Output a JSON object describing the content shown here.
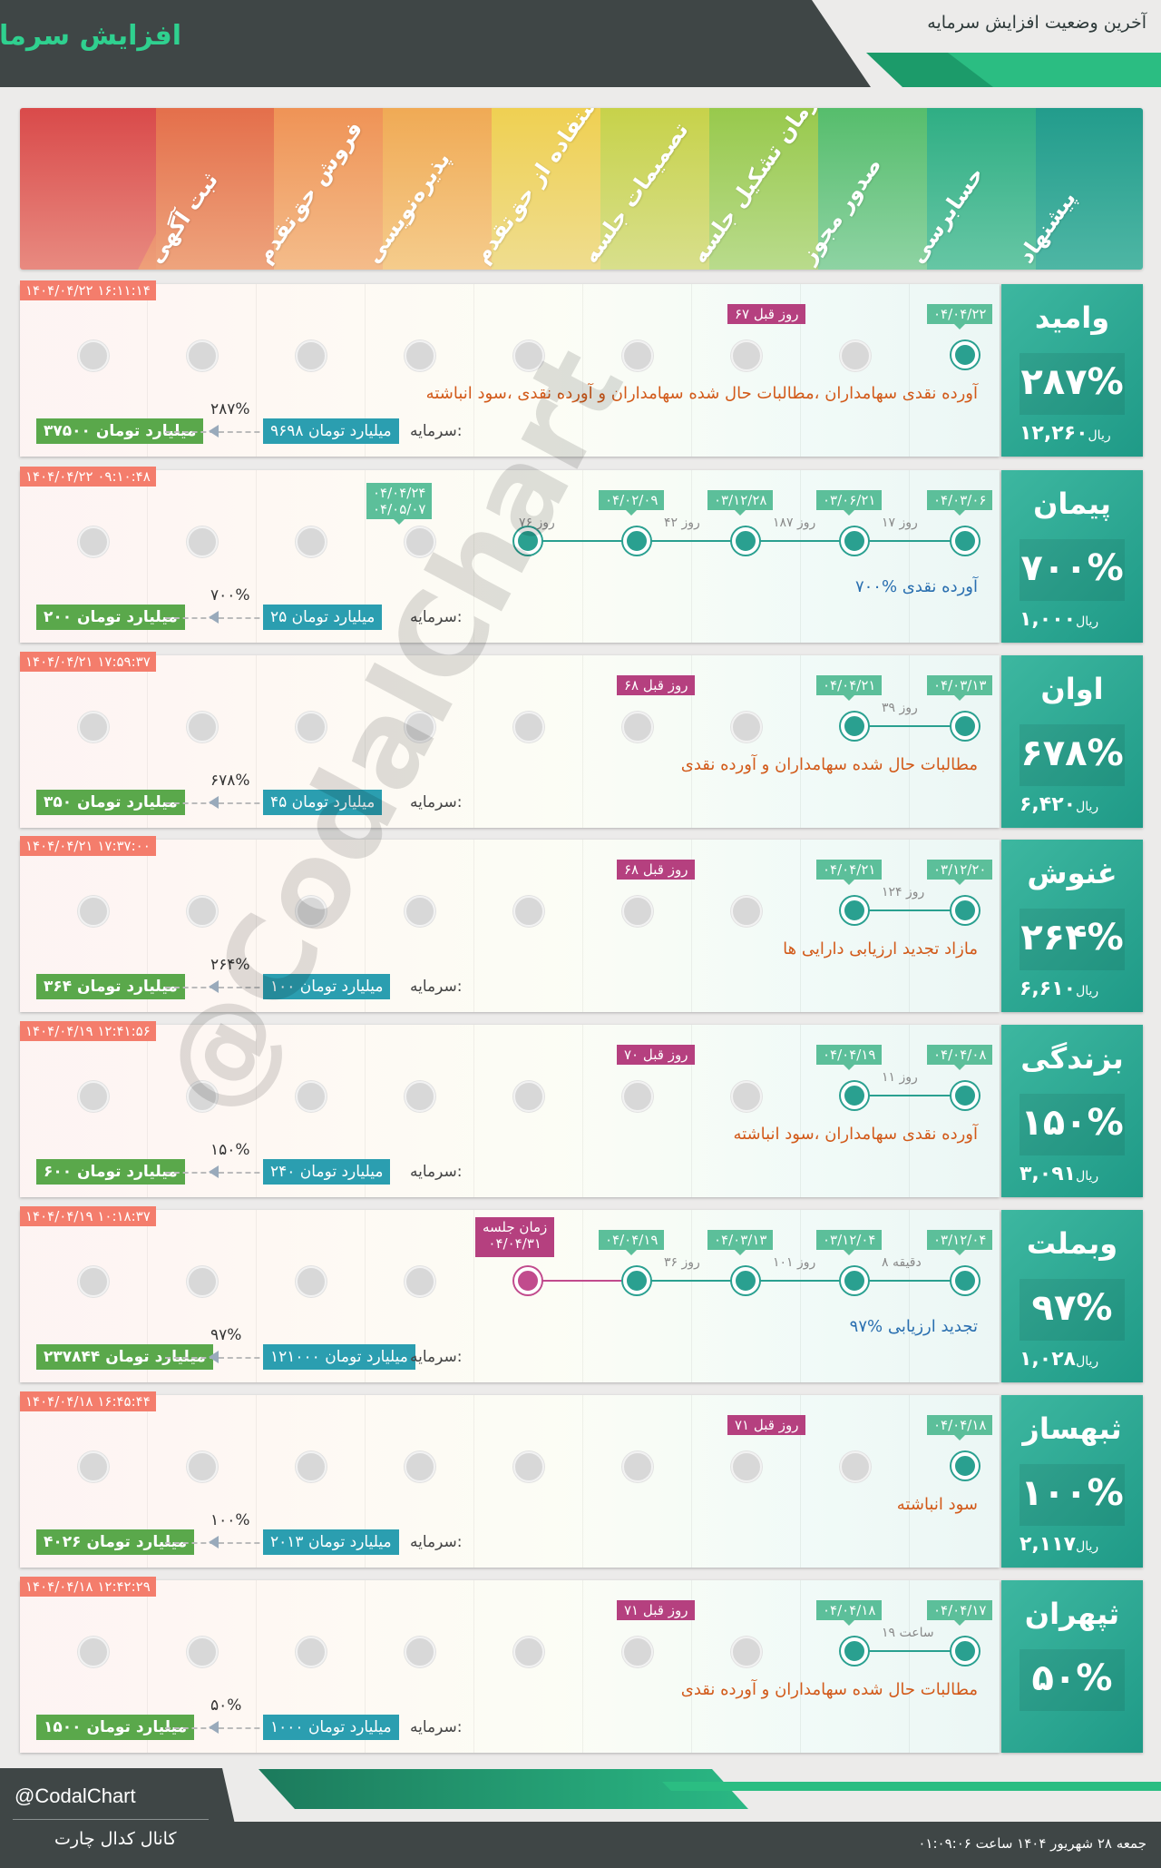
{
  "header": {
    "title": "افزایش سرمایه",
    "subtitle": "آخرین وضعیت افزایش سرمایه",
    "accent": "#2fd08f",
    "dark": "#3f4646"
  },
  "stages": [
    "پیشنهاد",
    "حسابرسی",
    "صدور مجوز",
    "زمان تشکیل جلسه",
    "تصمیمات جلسه",
    "استفاده از حق‌تقدم",
    "پذیره‌نویسی",
    "فروش حق‌تقدم",
    "ثبت آگهی"
  ],
  "cap_label": "سرمایه:",
  "cards": [
    {
      "name": "وامید",
      "pct": "۲۸۷%",
      "price": "۱۲,۲۶۰",
      "currency": "ریال",
      "timestamp": "۱۴۰۴/۰۴/۲۲ ۱۶:۱۱:۱۴",
      "dates": [
        "۰۴/۰۴/۲۲"
      ],
      "ago": "۶۷ روز قبل",
      "gaps": [],
      "desc": "آورده نقدی سهامداران ،مطالبات حال شده سهامداران و آورده نقدی ،سود انباشته",
      "capital": "۹۶۹۸ میلیارد تومان",
      "increase": "۲۸۷%",
      "new_capital": "۳۷۵۰۰ میلیارد تومان"
    },
    {
      "name": "پیمان",
      "pct": "۷۰۰%",
      "price": "۱,۰۰۰",
      "currency": "ریال",
      "timestamp": "۱۴۰۴/۰۴/۲۲ ۰۹:۱۰:۴۸",
      "dates": [
        "۰۴/۰۳/۰۶",
        "۰۳/۰۶/۲۱",
        "۰۳/۱۲/۲۸",
        "۰۴/۰۲/۰۹",
        "۰۴/۰۴/۲۴",
        "۰۴/۰۵/۰۷"
      ],
      "ago": "",
      "gaps": [
        "۱۷ روز",
        "۱۸۷ روز",
        "۴۲ روز",
        "۷۶ روز"
      ],
      "desc": "۷۰۰% آورده نقدی",
      "capital": "۲۵ میلیارد تومان",
      "increase": "۷۰۰%",
      "new_capital": "۲۰۰ میلیارد تومان"
    },
    {
      "name": "اوان",
      "pct": "۶۷۸%",
      "price": "۶,۴۲۰",
      "currency": "ریال",
      "timestamp": "۱۴۰۴/۰۴/۲۱ ۱۷:۵۹:۳۷",
      "dates": [
        "۰۴/۰۳/۱۳",
        "۰۴/۰۴/۲۱"
      ],
      "ago": "۶۸ روز قبل",
      "gaps": [
        "۳۹ روز"
      ],
      "desc": "مطالبات حال شده سهامداران و آورده نقدی",
      "capital": "۴۵ میلیارد تومان",
      "increase": "۶۷۸%",
      "new_capital": "۳۵۰ میلیارد تومان"
    },
    {
      "name": "غنوش",
      "pct": "۲۶۴%",
      "price": "۶,۶۱۰",
      "currency": "ریال",
      "timestamp": "۱۴۰۴/۰۴/۲۱ ۱۷:۳۷:۰۰",
      "dates": [
        "۰۳/۱۲/۲۰",
        "۰۴/۰۴/۲۱"
      ],
      "ago": "۶۸ روز قبل",
      "gaps": [
        "۱۲۴ روز"
      ],
      "desc": "مازاد تجدید ارزیابی دارایی ها",
      "capital": "۱۰۰ میلیارد تومان",
      "increase": "۲۶۴%",
      "new_capital": "۳۶۴ میلیارد تومان"
    },
    {
      "name": "بزندگی",
      "pct": "۱۵۰%",
      "price": "۳,۰۹۱",
      "currency": "ریال",
      "timestamp": "۱۴۰۴/۰۴/۱۹ ۱۲:۴۱:۵۶",
      "dates": [
        "۰۴/۰۴/۰۸",
        "۰۴/۰۴/۱۹"
      ],
      "ago": "۷۰ روز قبل",
      "gaps": [
        "۱۱ روز"
      ],
      "desc": "آورده نقدی سهامداران ،سود انباشته",
      "capital": "۲۴۰ میلیارد تومان",
      "increase": "۱۵۰%",
      "new_capital": "۶۰۰ میلیارد تومان"
    },
    {
      "name": "وبملت",
      "pct": "۹۷%",
      "price": "۱,۰۲۸",
      "currency": "ریال",
      "timestamp": "۱۴۰۴/۰۴/۱۹ ۱۰:۱۸:۳۷",
      "dates": [
        "۰۳/۱۲/۰۴",
        "۰۳/۱۲/۰۴",
        "۰۴/۰۳/۱۳",
        "۰۴/۰۴/۱۹"
      ],
      "ago": "",
      "gaps": [
        "۸ دقیقه",
        "۱۰۱ روز",
        "۳۶ روز"
      ],
      "meeting_label": "زمان جلسه",
      "meeting_date": "۰۴/۰۴/۳۱",
      "desc": "۹۷% تجدید ارزیابی",
      "capital": "۱۲۱۰۰۰ میلیارد تومان",
      "increase": "۹۷%",
      "new_capital": "۲۳۷۸۴۴ میلیارد تومان"
    },
    {
      "name": "ثبهساز",
      "pct": "۱۰۰%",
      "price": "۲,۱۱۷",
      "currency": "ریال",
      "timestamp": "۱۴۰۴/۰۴/۱۸ ۱۶:۴۵:۴۴",
      "dates": [
        "۰۴/۰۴/۱۸"
      ],
      "ago": "۷۱ روز قبل",
      "gaps": [],
      "desc": "سود انباشته",
      "capital": "۲۰۱۳ میلیارد تومان",
      "increase": "۱۰۰%",
      "new_capital": "۴۰۲۶ میلیارد تومان"
    },
    {
      "name": "ثپهران",
      "pct": "۵۰%",
      "price": "",
      "currency": "",
      "timestamp": "۱۴۰۴/۰۴/۱۸ ۱۲:۴۲:۲۹",
      "dates": [
        "۰۴/۰۴/۱۷",
        "۰۴/۰۴/۱۸"
      ],
      "ago": "۷۱ روز قبل",
      "gaps": [
        "۱۹ ساعت"
      ],
      "desc": "مطالبات حال شده سهامداران و آورده نقدی",
      "capital": "۱۰۰۰ میلیارد تومان",
      "increase": "۵۰%",
      "new_capital": "۱۵۰۰ میلیارد تومان"
    }
  ],
  "watermark": "@CodalChart",
  "footer": {
    "handle": "@CodalChart",
    "channel": "کانال کدال چارت",
    "datetime": "جمعه ۲۸ شهریور ۱۴۰۴ ساعت ۰۱:۰۹:۰۶"
  }
}
